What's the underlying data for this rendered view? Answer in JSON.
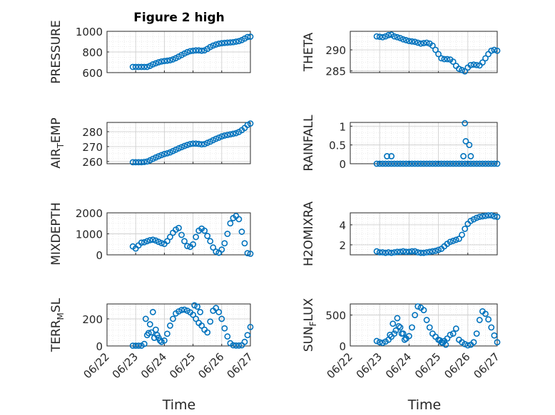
{
  "figure": {
    "title": "Figure 2 high",
    "xlabel": "Time",
    "x_ticks": [
      "06/22",
      "06/23",
      "06/24",
      "06/25",
      "06/26",
      "06/27"
    ],
    "marker_color": "#0072bd"
  },
  "chart_data": [
    {
      "type": "scatter",
      "ylabel": "PRESSURE",
      "xlim": [
        0,
        5
      ],
      "ylim": [
        600,
        1000
      ],
      "yticks": [
        "600",
        "800",
        "1000"
      ],
      "ytick_values": [
        600,
        800,
        1000
      ],
      "grid": true,
      "x": [
        0.9,
        1.0,
        1.1,
        1.2,
        1.3,
        1.4,
        1.5,
        1.6,
        1.7,
        1.8,
        1.9,
        2.0,
        2.1,
        2.2,
        2.3,
        2.4,
        2.5,
        2.6,
        2.7,
        2.8,
        2.9,
        3.0,
        3.1,
        3.2,
        3.3,
        3.4,
        3.5,
        3.6,
        3.7,
        3.8,
        3.9,
        4.0,
        4.1,
        4.2,
        4.3,
        4.4,
        4.5,
        4.6,
        4.7,
        4.8,
        4.9,
        5.0
      ],
      "y": [
        655,
        655,
        655,
        655,
        655,
        655,
        665,
        680,
        690,
        700,
        708,
        712,
        715,
        720,
        728,
        740,
        755,
        770,
        785,
        798,
        808,
        812,
        815,
        815,
        812,
        815,
        830,
        848,
        862,
        872,
        880,
        885,
        888,
        890,
        892,
        895,
        900,
        905,
        915,
        930,
        945,
        948
      ]
    },
    {
      "type": "scatter",
      "ylabel": "THETA",
      "xlim": [
        0,
        5
      ],
      "ylim": [
        284.6,
        294.4
      ],
      "yticks": [
        "285",
        "290"
      ],
      "ytick_values": [
        285,
        290
      ],
      "grid": true,
      "x": [
        0.9,
        1.0,
        1.1,
        1.2,
        1.3,
        1.4,
        1.5,
        1.6,
        1.7,
        1.8,
        1.9,
        2.0,
        2.1,
        2.2,
        2.3,
        2.4,
        2.5,
        2.6,
        2.7,
        2.8,
        2.9,
        3.0,
        3.1,
        3.2,
        3.3,
        3.4,
        3.5,
        3.6,
        3.7,
        3.8,
        3.9,
        4.0,
        4.1,
        4.2,
        4.3,
        4.4,
        4.5,
        4.6,
        4.7,
        4.8,
        4.9,
        5.0
      ],
      "y": [
        293.2,
        293.1,
        293.0,
        293.2,
        293.5,
        293.6,
        293.2,
        293.0,
        292.8,
        292.5,
        292.3,
        292.1,
        292.0,
        291.9,
        291.7,
        291.5,
        291.6,
        291.7,
        291.5,
        291.0,
        290.0,
        289.0,
        288.0,
        287.8,
        287.8,
        287.7,
        287.2,
        286.2,
        285.5,
        285.2,
        284.9,
        285.8,
        286.4,
        286.5,
        286.4,
        286.3,
        287.0,
        288.0,
        289.0,
        289.8,
        290.0,
        289.8
      ]
    },
    {
      "type": "scatter",
      "ylabel": "AIR_TEMP",
      "xlim": [
        0,
        5
      ],
      "ylim": [
        258.5,
        286.2
      ],
      "yticks": [
        "260",
        "270",
        "280"
      ],
      "ytick_values": [
        260,
        270,
        280
      ],
      "grid": true,
      "x": [
        0.9,
        1.0,
        1.1,
        1.2,
        1.3,
        1.4,
        1.5,
        1.6,
        1.7,
        1.8,
        1.9,
        2.0,
        2.1,
        2.2,
        2.3,
        2.4,
        2.5,
        2.6,
        2.7,
        2.8,
        2.9,
        3.0,
        3.1,
        3.2,
        3.3,
        3.4,
        3.5,
        3.6,
        3.7,
        3.8,
        3.9,
        4.0,
        4.1,
        4.2,
        4.3,
        4.4,
        4.5,
        4.6,
        4.7,
        4.8,
        4.9,
        5.0
      ],
      "y": [
        259.5,
        259.5,
        259.5,
        259.5,
        259.7,
        260.0,
        260.8,
        261.8,
        262.7,
        263.5,
        264.3,
        265.0,
        265.5,
        266.1,
        267.0,
        267.9,
        268.8,
        269.6,
        270.4,
        271.1,
        271.7,
        272.0,
        272.0,
        271.8,
        271.5,
        271.7,
        272.5,
        273.3,
        274.3,
        275.2,
        276.0,
        276.8,
        277.4,
        277.8,
        278.2,
        278.6,
        279.0,
        279.8,
        281.0,
        282.5,
        284.5,
        285.5
      ]
    },
    {
      "type": "scatter",
      "ylabel": "RAINFALL",
      "xlim": [
        0,
        5
      ],
      "ylim": [
        0,
        1.1
      ],
      "yticks": [
        "0",
        "0.5",
        "1"
      ],
      "ytick_values": [
        0,
        0.5,
        1
      ],
      "grid": true,
      "x": [
        0.9,
        1.0,
        1.1,
        1.2,
        1.3,
        1.4,
        1.5,
        1.6,
        1.7,
        1.8,
        1.9,
        2.0,
        2.1,
        2.2,
        2.3,
        2.4,
        2.5,
        2.6,
        2.7,
        2.8,
        2.9,
        3.0,
        3.1,
        3.2,
        3.3,
        3.4,
        3.5,
        3.6,
        3.7,
        3.8,
        3.9,
        4.0,
        4.1,
        4.2,
        4.3,
        4.4,
        4.5,
        4.6,
        4.7,
        4.8,
        4.9,
        5.0,
        1.25,
        1.4,
        3.85,
        3.9,
        3.93,
        4.05,
        4.1
      ],
      "y": [
        0,
        0,
        0,
        0,
        0,
        0,
        0,
        0,
        0,
        0,
        0,
        0,
        0,
        0,
        0,
        0,
        0,
        0,
        0,
        0,
        0,
        0,
        0,
        0,
        0,
        0,
        0,
        0,
        0,
        0,
        0,
        0,
        0,
        0,
        0,
        0,
        0,
        0,
        0,
        0,
        0,
        0,
        0.2,
        0.2,
        0.2,
        1.08,
        0.6,
        0.5,
        0.2
      ]
    },
    {
      "type": "scatter",
      "ylabel": "MIXDEPTH",
      "xlim": [
        0,
        5
      ],
      "ylim": [
        0,
        2000
      ],
      "yticks": [
        "0",
        "1000",
        "2000"
      ],
      "ytick_values": [
        0,
        1000,
        2000
      ],
      "grid": true,
      "x": [
        0.9,
        1.0,
        1.1,
        1.2,
        1.3,
        1.4,
        1.5,
        1.6,
        1.7,
        1.8,
        1.9,
        2.0,
        2.1,
        2.2,
        2.3,
        2.4,
        2.5,
        2.6,
        2.7,
        2.8,
        2.9,
        3.0,
        3.1,
        3.2,
        3.3,
        3.4,
        3.5,
        3.6,
        3.7,
        3.8,
        3.9,
        4.0,
        4.1,
        4.2,
        4.3,
        4.4,
        4.5,
        4.6,
        4.7,
        4.8,
        4.9,
        5.0
      ],
      "y": [
        400,
        300,
        450,
        580,
        600,
        650,
        700,
        720,
        680,
        620,
        560,
        520,
        650,
        850,
        1050,
        1200,
        1280,
        950,
        650,
        420,
        380,
        500,
        850,
        1150,
        1250,
        1150,
        900,
        650,
        350,
        150,
        100,
        250,
        550,
        1000,
        1500,
        1750,
        1850,
        1700,
        1100,
        550,
        80,
        50
      ]
    },
    {
      "type": "scatter",
      "ylabel": "H2OMIXRA",
      "xlim": [
        0,
        5
      ],
      "ylim": [
        1,
        5.2
      ],
      "yticks": [
        "2",
        "4"
      ],
      "ytick_values": [
        2,
        4
      ],
      "grid": true,
      "x": [
        0.9,
        1.0,
        1.1,
        1.2,
        1.3,
        1.4,
        1.5,
        1.6,
        1.7,
        1.8,
        1.9,
        2.0,
        2.1,
        2.2,
        2.3,
        2.4,
        2.5,
        2.6,
        2.7,
        2.8,
        2.9,
        3.0,
        3.1,
        3.2,
        3.3,
        3.4,
        3.5,
        3.6,
        3.7,
        3.8,
        3.9,
        4.0,
        4.1,
        4.2,
        4.3,
        4.4,
        4.5,
        4.6,
        4.7,
        4.8,
        4.9,
        5.0
      ],
      "y": [
        1.35,
        1.25,
        1.25,
        1.2,
        1.25,
        1.2,
        1.25,
        1.3,
        1.3,
        1.35,
        1.3,
        1.3,
        1.35,
        1.35,
        1.25,
        1.2,
        1.2,
        1.25,
        1.3,
        1.35,
        1.4,
        1.5,
        1.6,
        1.85,
        2.1,
        2.3,
        2.4,
        2.5,
        2.6,
        3.0,
        3.6,
        4.1,
        4.4,
        4.55,
        4.7,
        4.8,
        4.85,
        4.9,
        4.95,
        4.95,
        4.85,
        4.8
      ]
    },
    {
      "type": "scatter",
      "ylabel": "TERR_MSL",
      "xlim": [
        0,
        5
      ],
      "ylim": [
        0,
        310
      ],
      "yticks": [
        "0",
        "200"
      ],
      "ytick_values": [
        0,
        200
      ],
      "grid": true,
      "x": [
        0.9,
        1.0,
        1.1,
        1.2,
        1.3,
        1.4,
        1.5,
        1.6,
        1.7,
        1.8,
        1.9,
        2.0,
        2.1,
        2.2,
        2.3,
        2.4,
        2.5,
        2.6,
        2.7,
        2.8,
        2.9,
        3.0,
        3.1,
        3.2,
        3.3,
        3.4,
        3.5,
        3.6,
        3.7,
        3.8,
        3.9,
        4.0,
        4.1,
        4.2,
        4.3,
        4.4,
        4.5,
        4.6,
        4.7,
        4.8,
        4.9,
        5.0,
        1.35,
        1.45,
        1.55,
        1.65,
        1.75,
        1.85,
        3.05,
        3.15,
        3.25
      ],
      "y": [
        2,
        2,
        2,
        2,
        15,
        80,
        160,
        250,
        120,
        60,
        30,
        40,
        90,
        150,
        200,
        240,
        255,
        265,
        268,
        260,
        248,
        230,
        200,
        170,
        150,
        120,
        100,
        180,
        260,
        280,
        250,
        200,
        130,
        70,
        20,
        5,
        3,
        3,
        5,
        30,
        80,
        140,
        200,
        95,
        100,
        60,
        80,
        40,
        300,
        290,
        250
      ]
    },
    {
      "type": "scatter",
      "ylabel": "SUN_FLUX",
      "xlim": [
        0,
        5
      ],
      "ylim": [
        0,
        680
      ],
      "yticks": [
        "0",
        "500"
      ],
      "ytick_values": [
        0,
        500
      ],
      "grid": true,
      "x": [
        0.9,
        1.0,
        1.1,
        1.2,
        1.3,
        1.4,
        1.5,
        1.6,
        1.7,
        1.8,
        1.9,
        2.0,
        2.1,
        2.2,
        2.3,
        2.4,
        2.5,
        2.6,
        2.7,
        2.8,
        2.9,
        3.0,
        3.1,
        3.2,
        3.3,
        3.4,
        3.5,
        3.6,
        3.7,
        3.8,
        3.9,
        4.0,
        4.1,
        4.2,
        4.3,
        4.4,
        4.5,
        4.6,
        4.7,
        4.8,
        4.9,
        5.0,
        1.35,
        1.45,
        1.55,
        1.65,
        1.75,
        1.85,
        3.05,
        3.15,
        3.25
      ],
      "y": [
        80,
        60,
        50,
        70,
        100,
        150,
        200,
        450,
        300,
        200,
        120,
        160,
        300,
        500,
        640,
        620,
        580,
        420,
        300,
        200,
        150,
        100,
        60,
        80,
        120,
        180,
        200,
        280,
        100,
        60,
        30,
        10,
        20,
        60,
        200,
        420,
        560,
        520,
        430,
        300,
        170,
        60,
        180,
        360,
        250,
        320,
        200,
        100,
        90,
        50,
        20
      ]
    }
  ]
}
